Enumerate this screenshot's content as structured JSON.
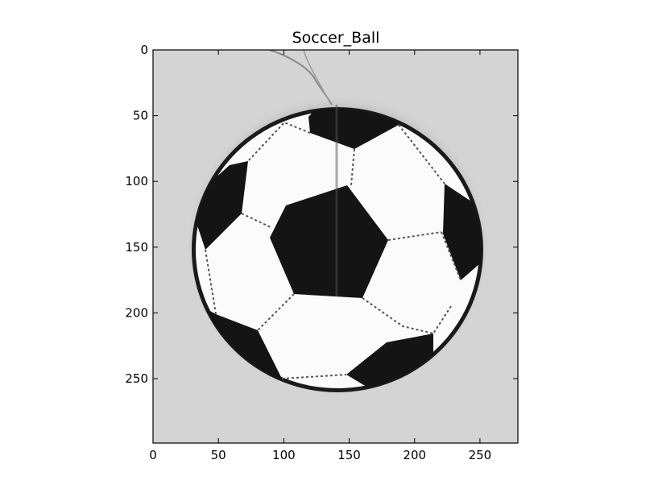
{
  "figure": {
    "title": "Soccer_Ball",
    "image_subject": "grayscale photo of a soccer ball hanging on a string",
    "colors": {
      "background": "#ffffff",
      "photo_background": "#d6d6d6",
      "ball_white": "#fbfbfb",
      "ball_black": "#141414",
      "seam": "#5a5a5a"
    }
  },
  "axes": {
    "x_ticks": [
      "0",
      "50",
      "100",
      "150",
      "200",
      "250"
    ],
    "y_ticks": [
      "0",
      "50",
      "100",
      "150",
      "200",
      "250"
    ],
    "x_range": [
      0,
      279
    ],
    "y_range": [
      0,
      299
    ],
    "y_inverted": true
  }
}
